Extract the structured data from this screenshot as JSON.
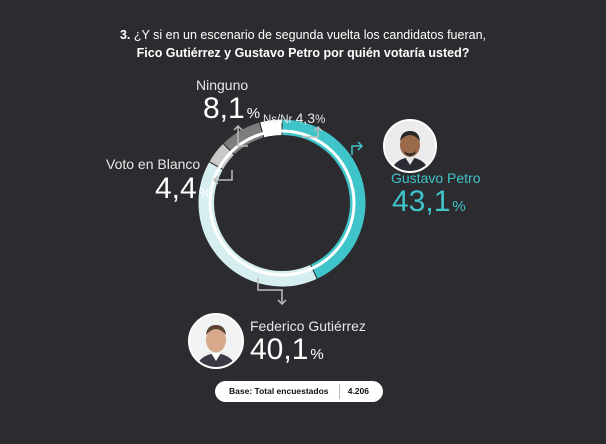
{
  "header": {
    "question_number": "3.",
    "line1": "¿Y si en un escenario de segunda vuelta los candidatos fueran,",
    "line2": "Fico Gutiérrez y Gustavo Petro por quién votaría usted?"
  },
  "chart_data": {
    "type": "pie",
    "variant": "donut",
    "slices": [
      {
        "label": "Gustavo Petro",
        "value_text": "43,1",
        "value": 43.1,
        "color": "#3fc4c9"
      },
      {
        "label": "Federico Gutiérrez",
        "value_text": "40,1",
        "value": 40.1,
        "color": "#d6eef0"
      },
      {
        "label": "Voto en Blanco",
        "value_text": "4,4",
        "value": 4.4,
        "color": "#c9c9c9"
      },
      {
        "label": "Ninguno",
        "value_text": "8,1",
        "value": 8.1,
        "color": "#7d7d7d"
      },
      {
        "label": "Ns/Nr",
        "value_text": "4,3",
        "value": 4.3,
        "color": "#ffffff"
      }
    ],
    "percent_sign": "%"
  },
  "footer": {
    "base_label": "Base: Total encuestados",
    "base_value": "4.206"
  },
  "icons": {
    "petro_avatar": "person-portrait-icon",
    "gutierrez_avatar": "person-portrait-icon"
  }
}
